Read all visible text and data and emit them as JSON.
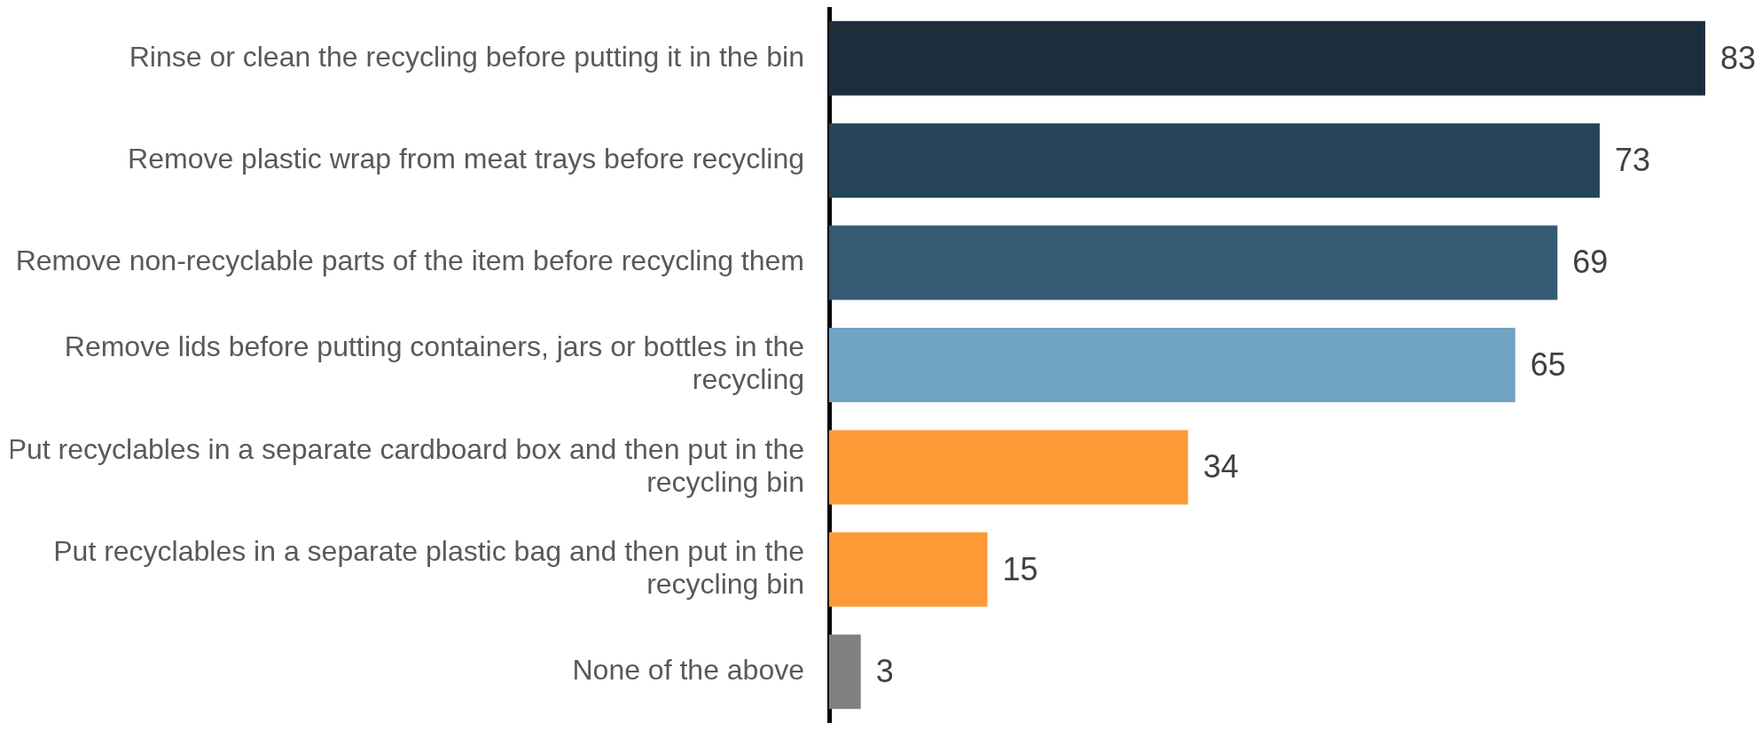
{
  "chart_data": {
    "type": "bar",
    "orientation": "horizontal",
    "categories": [
      "Rinse or clean the recycling before putting it in the bin",
      "Remove plastic wrap from meat trays before recycling",
      "Remove non-recyclable parts of the item before recycling them",
      "Remove lids before putting containers, jars or bottles in the recycling",
      "Put recyclables in a separate cardboard box and then put in the recycling bin",
      "Put recyclables in a separate plastic bag and then put in the recycling bin",
      "None of the above"
    ],
    "values": [
      83,
      73,
      69,
      65,
      34,
      15,
      3
    ],
    "colors": [
      "#1c2d3c",
      "#264457",
      "#335b74",
      "#71a3c3",
      "#fe9a35",
      "#fe9a35",
      "#808080"
    ],
    "data_labels": true,
    "tick_labels": "y"
  }
}
